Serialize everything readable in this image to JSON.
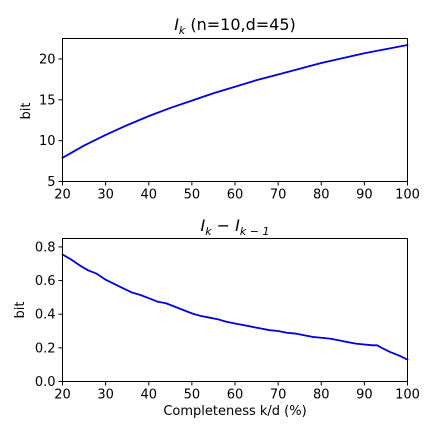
{
  "chart_data": [
    {
      "type": "line",
      "title": "I_k (n=10,d=45)",
      "title_parts": {
        "main": "I",
        "sub": "k",
        "rest": " (n=10,d=45)"
      },
      "xlabel": "",
      "ylabel": "bit",
      "xlim": [
        20,
        100
      ],
      "ylim": [
        5,
        22.5
      ],
      "xticks": [
        20,
        30,
        40,
        50,
        60,
        70,
        80,
        90,
        100
      ],
      "yticks": [
        5,
        10,
        15,
        20
      ],
      "grid": false,
      "color": "#0000dd",
      "x": [
        20,
        25,
        30,
        35,
        40,
        45,
        50,
        55,
        60,
        65,
        70,
        75,
        80,
        85,
        90,
        95,
        100
      ],
      "y": [
        7.9,
        9.4,
        10.7,
        11.9,
        13.0,
        14.0,
        14.9,
        15.8,
        16.6,
        17.4,
        18.1,
        18.8,
        19.5,
        20.1,
        20.7,
        21.2,
        21.7
      ]
    },
    {
      "type": "line",
      "title": "I_k − I_k−1",
      "title_parts": {
        "a": "I",
        "a_sub": "k",
        "op": " − ",
        "b": "I",
        "b_sub": "k − 1"
      },
      "xlabel": "Completeness k/d (%)",
      "ylabel": "bit",
      "xlim": [
        20,
        100
      ],
      "ylim": [
        0.0,
        0.85
      ],
      "xticks": [
        20,
        30,
        40,
        50,
        60,
        70,
        80,
        90,
        100
      ],
      "yticks": [
        0.0,
        0.2,
        0.4,
        0.6,
        0.8
      ],
      "ytick_labels": [
        "0.0",
        "0.2",
        "0.4",
        "0.6",
        "0.8"
      ],
      "grid": false,
      "color": "#0000dd",
      "x": [
        20,
        22,
        24,
        26,
        28,
        30,
        32,
        34,
        36,
        38,
        40,
        42,
        44,
        46,
        48,
        50,
        52,
        54,
        56,
        58,
        60,
        62,
        64,
        66,
        68,
        70,
        72,
        74,
        76,
        78,
        80,
        82,
        84,
        86,
        88,
        90,
        92,
        93,
        94,
        96,
        98,
        100
      ],
      "y": [
        0.755,
        0.725,
        0.69,
        0.66,
        0.64,
        0.605,
        0.58,
        0.555,
        0.53,
        0.515,
        0.495,
        0.475,
        0.465,
        0.445,
        0.425,
        0.405,
        0.39,
        0.38,
        0.37,
        0.355,
        0.345,
        0.335,
        0.325,
        0.315,
        0.305,
        0.3,
        0.29,
        0.285,
        0.275,
        0.265,
        0.26,
        0.255,
        0.245,
        0.235,
        0.225,
        0.22,
        0.215,
        0.215,
        0.2,
        0.175,
        0.155,
        0.13
      ]
    }
  ]
}
